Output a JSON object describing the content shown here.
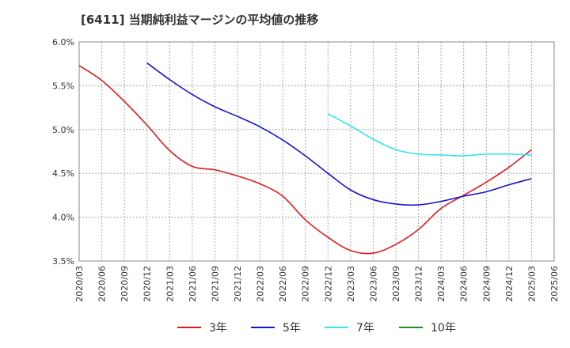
{
  "title": "[6411]  当期純利益マージンの平均値の推移",
  "chart_data": {
    "type": "line",
    "title": "[6411]  当期純利益マージンの平均値の推移",
    "xlabel": "",
    "ylabel": "",
    "ylim": [
      3.5,
      6.0
    ],
    "y_ticks": [
      "3.5%",
      "4.0%",
      "4.5%",
      "5.0%",
      "5.5%",
      "6.0%"
    ],
    "x_ticks": [
      "2020/03",
      "2020/06",
      "2020/09",
      "2020/12",
      "2021/03",
      "2021/06",
      "2021/09",
      "2021/12",
      "2022/03",
      "2022/06",
      "2022/09",
      "2022/12",
      "2023/03",
      "2023/06",
      "2023/09",
      "2023/12",
      "2024/03",
      "2024/06",
      "2024/09",
      "2024/12",
      "2025/03",
      "2025/06"
    ],
    "grid": true,
    "legend_position": "bottom",
    "colors": {
      "3年": "#dd1c1c",
      "5年": "#1515cc",
      "7年": "#33e6f0",
      "10年": "#228b22"
    },
    "series": [
      {
        "name": "3年",
        "x": [
          "2020/03",
          "2020/06",
          "2020/09",
          "2020/12",
          "2021/03",
          "2021/06",
          "2021/09",
          "2021/12",
          "2022/03",
          "2022/06",
          "2022/09",
          "2022/12",
          "2023/03",
          "2023/06",
          "2023/09",
          "2023/12",
          "2024/03",
          "2024/06",
          "2024/09",
          "2024/12",
          "2025/03"
        ],
        "values": [
          5.73,
          5.56,
          5.32,
          5.05,
          4.76,
          4.58,
          4.54,
          4.47,
          4.38,
          4.24,
          3.97,
          3.77,
          3.62,
          3.59,
          3.69,
          3.86,
          4.1,
          4.25,
          4.4,
          4.57,
          4.77
        ]
      },
      {
        "name": "5年",
        "x": [
          "2020/12",
          "2021/03",
          "2021/06",
          "2021/09",
          "2021/12",
          "2022/03",
          "2022/06",
          "2022/09",
          "2022/12",
          "2023/03",
          "2023/06",
          "2023/09",
          "2023/12",
          "2024/03",
          "2024/06",
          "2024/09",
          "2024/12",
          "2025/03"
        ],
        "values": [
          5.76,
          5.57,
          5.4,
          5.26,
          5.15,
          5.03,
          4.88,
          4.7,
          4.5,
          4.31,
          4.2,
          4.15,
          4.14,
          4.18,
          4.24,
          4.29,
          4.37,
          4.44
        ]
      },
      {
        "name": "7年",
        "x": [
          "2022/12",
          "2023/03",
          "2023/06",
          "2023/09",
          "2023/12",
          "2024/03",
          "2024/06",
          "2024/09",
          "2024/12",
          "2025/03"
        ],
        "values": [
          5.18,
          5.04,
          4.89,
          4.77,
          4.72,
          4.71,
          4.7,
          4.72,
          4.72,
          4.71
        ]
      },
      {
        "name": "10年",
        "x": [],
        "values": []
      }
    ]
  }
}
